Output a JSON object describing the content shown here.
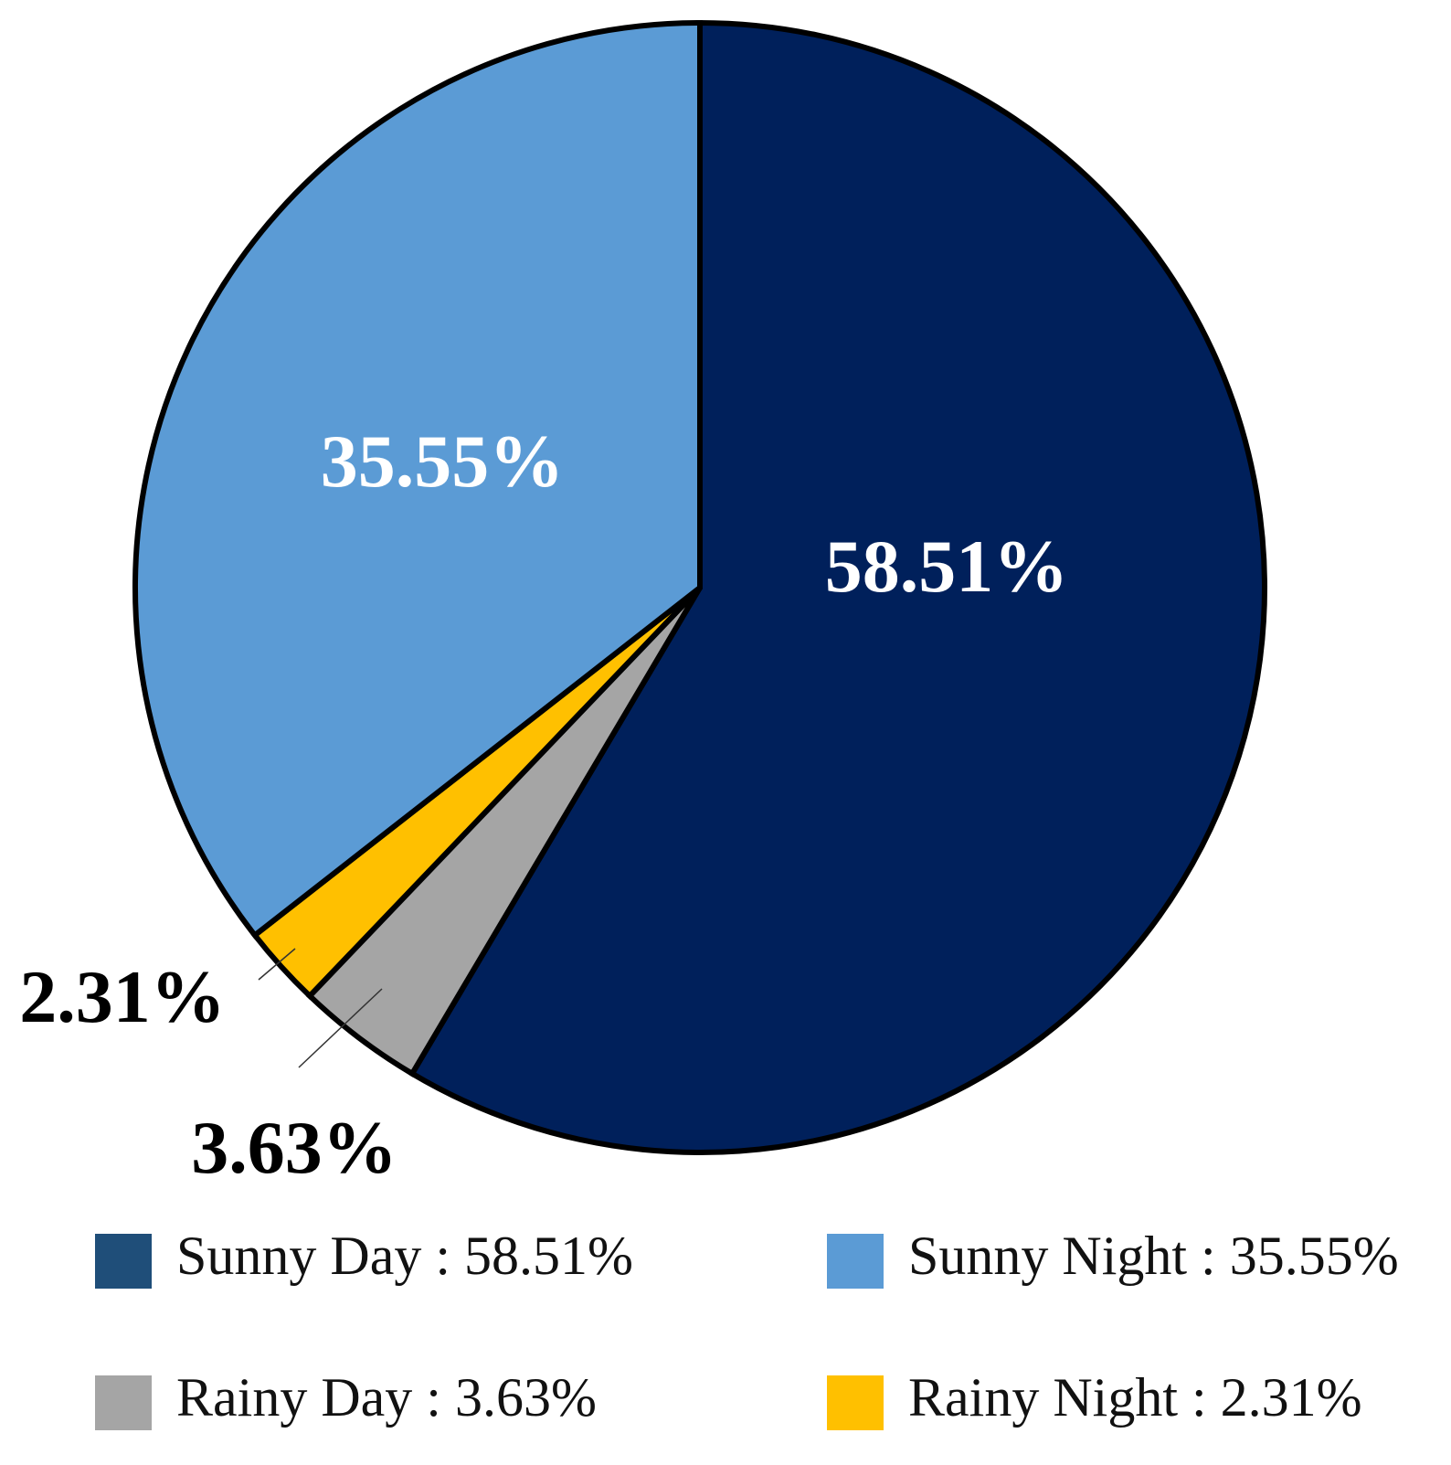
{
  "chart_data": {
    "type": "pie",
    "title": "",
    "slices": [
      {
        "name": "Sunny Day",
        "value": 58.51,
        "label": "58.51%",
        "color": "#00205b",
        "legend_color": "#1f4e79",
        "legend_text": "Sunny Day : 58.51%"
      },
      {
        "name": "Rainy Day",
        "value": 3.63,
        "label": "3.63%",
        "color": "#a5a5a5",
        "legend_color": "#a5a5a5",
        "legend_text": "Rainy Day : 3.63%"
      },
      {
        "name": "Rainy Night",
        "value": 2.31,
        "label": "2.31%",
        "color": "#ffc000",
        "legend_color": "#ffc000",
        "legend_text": "Rainy Night : 2.31%"
      },
      {
        "name": "Sunny Night",
        "value": 35.55,
        "label": "35.55%",
        "color": "#5b9bd5",
        "legend_color": "#5b9bd5",
        "legend_text": "Sunny Night : 35.55%"
      }
    ],
    "start_angle": "12 o'clock",
    "direction": "clockwise",
    "legend_position": "bottom",
    "legend_order": [
      "Sunny Day",
      "Sunny Night",
      "Rainy Day",
      "Rainy Night"
    ]
  }
}
